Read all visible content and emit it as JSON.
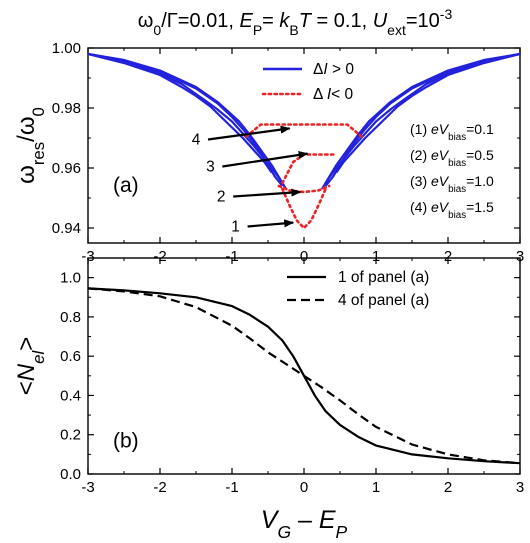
{
  "figure": {
    "title_parts": [
      "ω",
      "0",
      "/Γ=0.01, ",
      "E",
      "P",
      "= ",
      "k",
      "B",
      "T",
      " = 0.1, ",
      "U",
      "ext",
      "=10",
      "-3"
    ]
  },
  "chart_data": [
    {
      "type": "line",
      "panel_label": "(a)",
      "ylabel_parts": [
        "ω",
        "res",
        "/ω",
        "0"
      ],
      "xlim": [
        -3,
        3
      ],
      "ylim": [
        0.935,
        1.0
      ],
      "xticks": [
        -3,
        -2,
        -1,
        0,
        1,
        2,
        3
      ],
      "xtick_labels": [
        "-3",
        "-2",
        "-1",
        "0",
        "1",
        "2",
        "3"
      ],
      "yticks": [
        0.94,
        0.96,
        0.98,
        1.0
      ],
      "ytick_labels": [
        "0.94",
        "0.96",
        "0.98",
        "1.00"
      ],
      "legend": {
        "position": "top-center",
        "entries": [
          {
            "parts": [
              "Δ",
              "I",
              " > 0"
            ],
            "style": "solid",
            "color": "#2222dd"
          },
          {
            "parts": [
              "Δ ",
              "I",
              "< 0"
            ],
            "style": "dotted",
            "color": "#ee2222"
          }
        ]
      },
      "bias_notes": [
        {
          "lbl": "(1) ",
          "sub": "bias",
          "val": "=0.1"
        },
        {
          "lbl": "(2) ",
          "sub": "bias",
          "val": "=0.5"
        },
        {
          "lbl": "(3) ",
          "sub": "bias",
          "val": "=1.0"
        },
        {
          "lbl": "(4) ",
          "sub": "bias",
          "val": "=1.5"
        }
      ],
      "bias_var": [
        "eV"
      ],
      "curve_labels": [
        {
          "text": "4",
          "pos": [
            -1.5,
            0.9695
          ],
          "arrow_to": [
            -0.2,
            0.9732
          ]
        },
        {
          "text": "3",
          "pos": [
            -1.3,
            0.9605
          ],
          "arrow_to": [
            0.05,
            0.9648
          ]
        },
        {
          "text": "2",
          "pos": [
            -1.15,
            0.9505
          ],
          "arrow_to": [
            -0.05,
            0.952
          ]
        },
        {
          "text": "1",
          "pos": [
            -0.95,
            0.9405
          ],
          "arrow_to": [
            -0.15,
            0.9418
          ]
        }
      ],
      "series": [
        {
          "style": "solid",
          "color": "#2222dd",
          "x": [
            -3,
            -2.5,
            -2,
            -1.5,
            -1.2,
            -0.9,
            -0.75,
            -0.6,
            -0.45,
            -0.35,
            -0.3,
            -0.25
          ],
          "y": [
            0.998,
            0.996,
            0.9925,
            0.987,
            0.982,
            0.9755,
            0.971,
            0.966,
            0.961,
            0.957,
            0.955,
            0.953
          ]
        },
        {
          "style": "solid",
          "color": "#2222dd",
          "x": [
            -3,
            -2.5,
            -2,
            -1.5,
            -1.2,
            -1.0,
            -0.85,
            -0.7,
            -0.6,
            -0.5,
            -0.4,
            -0.3
          ],
          "y": [
            0.998,
            0.9958,
            0.9922,
            0.9865,
            0.9815,
            0.977,
            0.973,
            0.9685,
            0.965,
            0.961,
            0.957,
            0.954
          ]
        },
        {
          "style": "solid",
          "color": "#2222dd",
          "x": [
            -3,
            -2.5,
            -2,
            -1.7,
            -1.4,
            -1.2,
            -1.0,
            -0.85,
            -0.7,
            -0.55,
            -0.4,
            -0.3
          ],
          "y": [
            0.998,
            0.9955,
            0.9915,
            0.988,
            0.983,
            0.9795,
            0.9755,
            0.9715,
            0.9675,
            0.963,
            0.9585,
            0.955
          ]
        },
        {
          "style": "solid",
          "color": "#2222dd",
          "x": [
            -3,
            -2.5,
            -2,
            -1.7,
            -1.5,
            -1.3,
            -1.15,
            -1.0,
            -0.85,
            -0.7,
            -0.55,
            -0.45
          ],
          "y": [
            0.998,
            0.995,
            0.991,
            0.987,
            0.984,
            0.9805,
            0.977,
            0.9735,
            0.97,
            0.966,
            0.962,
            0.9585
          ]
        },
        {
          "style": "solid",
          "color": "#2222dd",
          "x": [
            0.25,
            0.3,
            0.35,
            0.45,
            0.6,
            0.75,
            0.9,
            1.2,
            1.5,
            2,
            2.5,
            3
          ],
          "y": [
            0.953,
            0.955,
            0.957,
            0.961,
            0.966,
            0.971,
            0.9755,
            0.982,
            0.987,
            0.9925,
            0.996,
            0.998
          ]
        },
        {
          "style": "solid",
          "color": "#2222dd",
          "x": [
            0.3,
            0.4,
            0.5,
            0.6,
            0.7,
            0.85,
            1.0,
            1.2,
            1.5,
            2,
            2.5,
            3
          ],
          "y": [
            0.954,
            0.957,
            0.961,
            0.965,
            0.9685,
            0.973,
            0.977,
            0.9815,
            0.9865,
            0.9922,
            0.9958,
            0.998
          ]
        },
        {
          "style": "solid",
          "color": "#2222dd",
          "x": [
            0.3,
            0.4,
            0.55,
            0.7,
            0.85,
            1.0,
            1.2,
            1.4,
            1.7,
            2,
            2.5,
            3
          ],
          "y": [
            0.955,
            0.9585,
            0.963,
            0.9675,
            0.9715,
            0.9755,
            0.9795,
            0.983,
            0.988,
            0.9915,
            0.9955,
            0.998
          ]
        },
        {
          "style": "solid",
          "color": "#2222dd",
          "x": [
            0.45,
            0.55,
            0.7,
            0.85,
            1.0,
            1.15,
            1.3,
            1.5,
            1.7,
            2,
            2.5,
            3
          ],
          "y": [
            0.9585,
            0.962,
            0.966,
            0.97,
            0.9735,
            0.977,
            0.9805,
            0.984,
            0.987,
            0.991,
            0.995,
            0.998
          ]
        },
        {
          "style": "dotted",
          "color": "#ee2222",
          "x": [
            -0.3,
            -0.2,
            -0.1,
            0,
            0.1,
            0.2,
            0.3
          ],
          "y": [
            0.953,
            0.9475,
            0.9425,
            0.94,
            0.9425,
            0.9475,
            0.953
          ]
        },
        {
          "style": "dotted",
          "color": "#ee2222",
          "x": [
            -0.35,
            -0.2,
            0,
            0.2,
            0.35
          ],
          "y": [
            0.954,
            0.9525,
            0.952,
            0.9525,
            0.954
          ]
        },
        {
          "style": "dotted",
          "color": "#ee2222",
          "x": [
            -0.3,
            -0.15,
            0,
            0.15,
            0.3,
            0.45
          ],
          "y": [
            0.955,
            0.962,
            0.9645,
            0.9645,
            0.9645,
            0.9645
          ]
        },
        {
          "style": "dotted",
          "color": "#ee2222",
          "x": [
            -0.8,
            -0.6,
            -0.4,
            -0.2,
            0,
            0.2,
            0.4,
            0.6,
            0.8
          ],
          "y": [
            0.9705,
            0.9745,
            0.9745,
            0.9745,
            0.9745,
            0.9745,
            0.9745,
            0.9745,
            0.9705
          ]
        }
      ]
    },
    {
      "type": "line",
      "panel_label": "(b)",
      "ylabel_parts": [
        "<",
        "N",
        "el",
        ">"
      ],
      "xlabel_parts": [
        "V",
        "G",
        " – ",
        "E",
        "P"
      ],
      "xlim": [
        -3,
        3
      ],
      "ylim": [
        0,
        1.1
      ],
      "xticks": [
        -3,
        -2,
        -1,
        0,
        1,
        2,
        3
      ],
      "xtick_labels": [
        "-3",
        "-2",
        "-1",
        "0",
        "1",
        "2",
        "3"
      ],
      "yticks": [
        0,
        0.2,
        0.4,
        0.6,
        0.8,
        1.0
      ],
      "ytick_labels": [
        "0.0",
        "0.2",
        "0.4",
        "0.6",
        "0.8",
        "1.0"
      ],
      "legend": {
        "position": "top-right",
        "entries": [
          {
            "text": "1 of panel (a)",
            "style": "solid",
            "color": "#000000"
          },
          {
            "text": "4 of panel (a)",
            "style": "dashed",
            "color": "#000000"
          }
        ]
      },
      "series": [
        {
          "name": "1 of panel (a)",
          "style": "solid",
          "color": "#000000",
          "x": [
            -3,
            -2.5,
            -2,
            -1.5,
            -1,
            -0.75,
            -0.5,
            -0.3,
            -0.15,
            0,
            0.15,
            0.3,
            0.5,
            0.75,
            1,
            1.5,
            2,
            2.5,
            3
          ],
          "y": [
            0.945,
            0.935,
            0.92,
            0.9,
            0.855,
            0.81,
            0.75,
            0.68,
            0.6,
            0.5,
            0.4,
            0.32,
            0.25,
            0.19,
            0.145,
            0.1,
            0.08,
            0.065,
            0.055
          ]
        },
        {
          "name": "4 of panel (a)",
          "style": "dashed",
          "color": "#000000",
          "x": [
            -3,
            -2.5,
            -2,
            -1.5,
            -1,
            -0.75,
            -0.5,
            -0.25,
            0,
            0.25,
            0.5,
            0.75,
            1,
            1.5,
            2,
            2.5,
            3
          ],
          "y": [
            0.945,
            0.93,
            0.905,
            0.85,
            0.755,
            0.69,
            0.62,
            0.56,
            0.5,
            0.44,
            0.375,
            0.305,
            0.24,
            0.15,
            0.1,
            0.07,
            0.055
          ]
        }
      ]
    }
  ]
}
